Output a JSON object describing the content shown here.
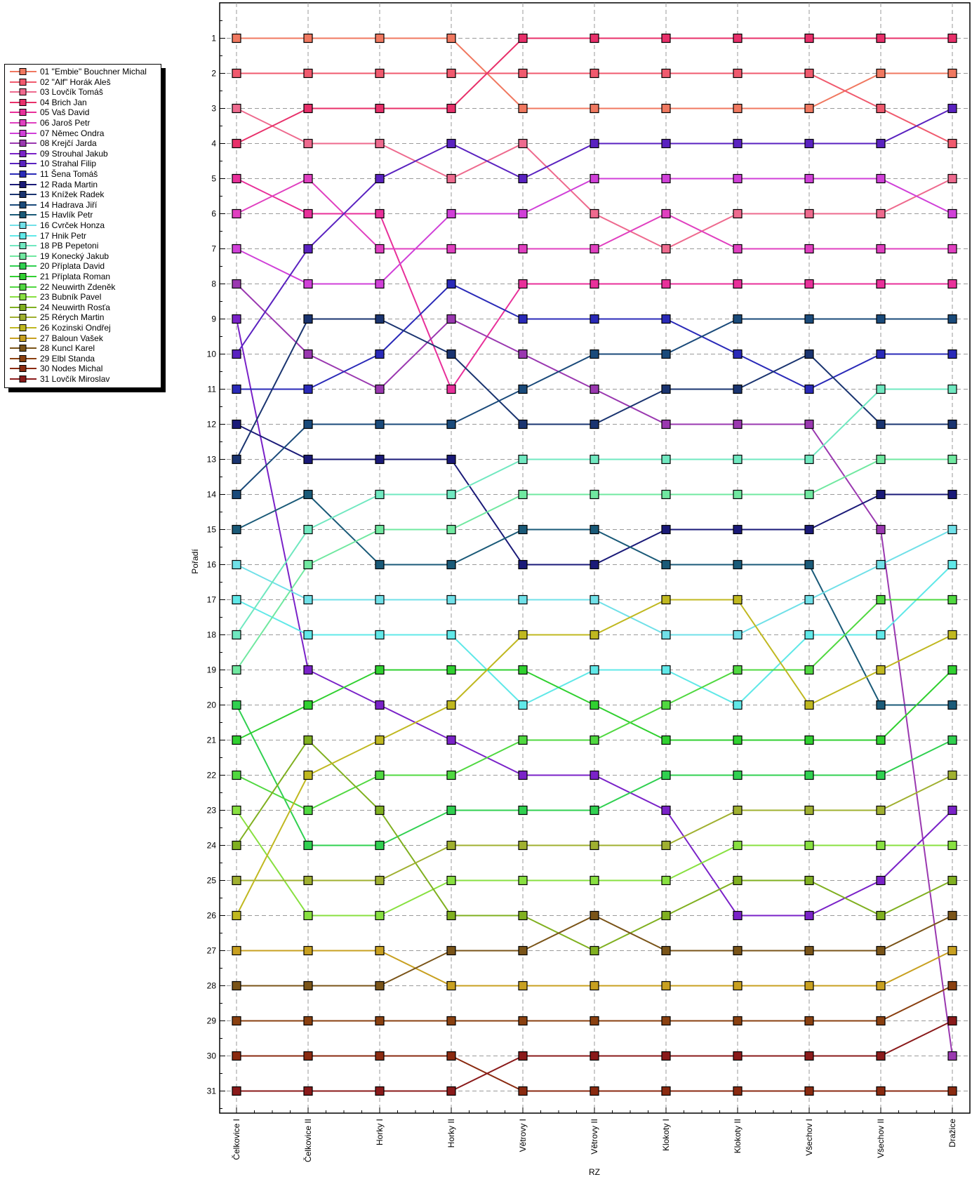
{
  "chart_data": {
    "type": "line",
    "xlabel": "RZ",
    "ylabel": "Pořadí",
    "title": "",
    "categories": [
      "Čelkovice I",
      "Čelkovice II",
      "Horky I",
      "Horky II",
      "Větrovy I",
      "Větrovy II",
      "Klokoty I",
      "Klokoty II",
      "Všechov I",
      "Všechov II",
      "Dražice"
    ],
    "y_ticks": [
      1,
      2,
      3,
      4,
      5,
      6,
      7,
      8,
      9,
      10,
      11,
      12,
      13,
      14,
      15,
      16,
      17,
      18,
      19,
      20,
      21,
      22,
      23,
      24,
      25,
      26,
      27,
      28,
      29,
      30,
      31
    ],
    "ylim": [
      0,
      32
    ],
    "y_inverted": true,
    "grid": true,
    "legend_position": "left",
    "series": [
      {
        "name": "01 \"Embie\" Bouchner Michal",
        "color": "#F07860",
        "values": [
          1,
          1,
          1,
          1,
          3,
          3,
          3,
          3,
          3,
          2,
          2
        ]
      },
      {
        "name": "02 \"Alf\" Horák Aleš",
        "color": "#F05A6E",
        "values": [
          2,
          2,
          2,
          2,
          2,
          2,
          2,
          2,
          2,
          3,
          4
        ]
      },
      {
        "name": "03 Lovčík Tomáš",
        "color": "#EE6A8E",
        "values": [
          3,
          4,
          4,
          5,
          4,
          6,
          7,
          6,
          6,
          6,
          5
        ]
      },
      {
        "name": "04 Brich Jan",
        "color": "#E8306A",
        "values": [
          4,
          3,
          3,
          3,
          1,
          1,
          1,
          1,
          1,
          1,
          1
        ]
      },
      {
        "name": "05 Vaš David",
        "color": "#E8309A",
        "values": [
          5,
          6,
          6,
          11,
          8,
          8,
          8,
          8,
          8,
          8,
          8
        ]
      },
      {
        "name": "06 Jaroš Petr",
        "color": "#E040C0",
        "values": [
          6,
          5,
          7,
          7,
          7,
          7,
          6,
          7,
          7,
          7,
          7
        ]
      },
      {
        "name": "07 Němec Ondra",
        "color": "#D040D8",
        "values": [
          7,
          8,
          8,
          6,
          6,
          5,
          5,
          5,
          5,
          5,
          6
        ]
      },
      {
        "name": "08 Krejčí Jarda",
        "color": "#9A38B0",
        "values": [
          8,
          10,
          11,
          9,
          10,
          11,
          12,
          12,
          12,
          15,
          30
        ]
      },
      {
        "name": "09 Strouhal Jakub",
        "color": "#7A22C8",
        "values": [
          9,
          19,
          20,
          21,
          22,
          22,
          23,
          26,
          26,
          25,
          23
        ]
      },
      {
        "name": "10 Strahal Filip",
        "color": "#5A22C0",
        "values": [
          10,
          7,
          5,
          4,
          5,
          4,
          4,
          4,
          4,
          4,
          3
        ]
      },
      {
        "name": "11 Šena Tomáš",
        "color": "#2A2AB8",
        "values": [
          11,
          11,
          10,
          8,
          9,
          9,
          9,
          10,
          11,
          10,
          10
        ]
      },
      {
        "name": "12 Rada Martin",
        "color": "#1A1A78",
        "values": [
          12,
          13,
          13,
          13,
          16,
          16,
          15,
          15,
          15,
          14,
          14
        ]
      },
      {
        "name": "13 Knížek Radek",
        "color": "#1A3470",
        "values": [
          13,
          9,
          9,
          10,
          12,
          12,
          11,
          11,
          10,
          12,
          12
        ]
      },
      {
        "name": "14 Hadrava Jiří",
        "color": "#1A4A7A",
        "values": [
          14,
          12,
          12,
          12,
          11,
          10,
          10,
          9,
          9,
          9,
          9
        ]
      },
      {
        "name": "15 Havlík Petr",
        "color": "#1A5A78",
        "values": [
          15,
          14,
          16,
          16,
          15,
          15,
          16,
          16,
          16,
          20,
          20
        ]
      },
      {
        "name": "16 Cvrček Honza",
        "color": "#70E0E8",
        "values": [
          16,
          17,
          17,
          17,
          17,
          17,
          18,
          18,
          17,
          16,
          15
        ]
      },
      {
        "name": "17 Hnik Petr",
        "color": "#60E8E8",
        "values": [
          17,
          18,
          18,
          18,
          20,
          19,
          19,
          20,
          18,
          18,
          16
        ]
      },
      {
        "name": "18 PB Pepetoni",
        "color": "#70E8C0",
        "values": [
          18,
          15,
          14,
          14,
          13,
          13,
          13,
          13,
          13,
          11,
          11
        ]
      },
      {
        "name": "19 Konecký Jakub",
        "color": "#70E8A0",
        "values": [
          19,
          16,
          15,
          15,
          14,
          14,
          14,
          14,
          14,
          13,
          13
        ]
      },
      {
        "name": "20 Příplata David",
        "color": "#30D050",
        "values": [
          20,
          24,
          24,
          23,
          23,
          23,
          22,
          22,
          22,
          22,
          21
        ]
      },
      {
        "name": "21 Příplata Roman",
        "color": "#30D030",
        "values": [
          21,
          20,
          19,
          19,
          19,
          20,
          21,
          21,
          21,
          21,
          19
        ]
      },
      {
        "name": "22 Neuwirth Zdeněk",
        "color": "#50D840",
        "values": [
          22,
          23,
          22,
          22,
          21,
          21,
          20,
          19,
          19,
          17,
          17
        ]
      },
      {
        "name": "23 Bubník Pavel",
        "color": "#88E040",
        "values": [
          23,
          26,
          26,
          25,
          25,
          25,
          25,
          24,
          24,
          24,
          24
        ]
      },
      {
        "name": "24 Neuwirth Rosťa",
        "color": "#80B020",
        "values": [
          24,
          21,
          23,
          26,
          26,
          27,
          26,
          25,
          25,
          26,
          25
        ]
      },
      {
        "name": "25 Rérych Martin",
        "color": "#A0B030",
        "values": [
          25,
          25,
          25,
          24,
          24,
          24,
          24,
          23,
          23,
          23,
          22
        ]
      },
      {
        "name": "26 Kozinski Ondřej",
        "color": "#C0B820",
        "values": [
          26,
          22,
          21,
          20,
          18,
          18,
          17,
          17,
          20,
          19,
          18
        ]
      },
      {
        "name": "27 Baloun Vašek",
        "color": "#C8A020",
        "values": [
          27,
          27,
          27,
          28,
          28,
          28,
          28,
          28,
          28,
          28,
          27
        ]
      },
      {
        "name": "28 Kuncl Karel",
        "color": "#7A5418",
        "values": [
          28,
          28,
          28,
          27,
          27,
          26,
          27,
          27,
          27,
          27,
          26
        ]
      },
      {
        "name": "29 Elbl Standa",
        "color": "#8A4010",
        "values": [
          29,
          29,
          29,
          29,
          29,
          29,
          29,
          29,
          29,
          29,
          28
        ]
      },
      {
        "name": "30 Nodes Michal",
        "color": "#8A2A10",
        "values": [
          30,
          30,
          30,
          30,
          31,
          31,
          31,
          31,
          31,
          31,
          31
        ]
      },
      {
        "name": "31 Lovčík Miroslav",
        "color": "#8A1A1A",
        "values": [
          31,
          31,
          31,
          31,
          30,
          30,
          30,
          30,
          30,
          30,
          29
        ]
      }
    ]
  }
}
